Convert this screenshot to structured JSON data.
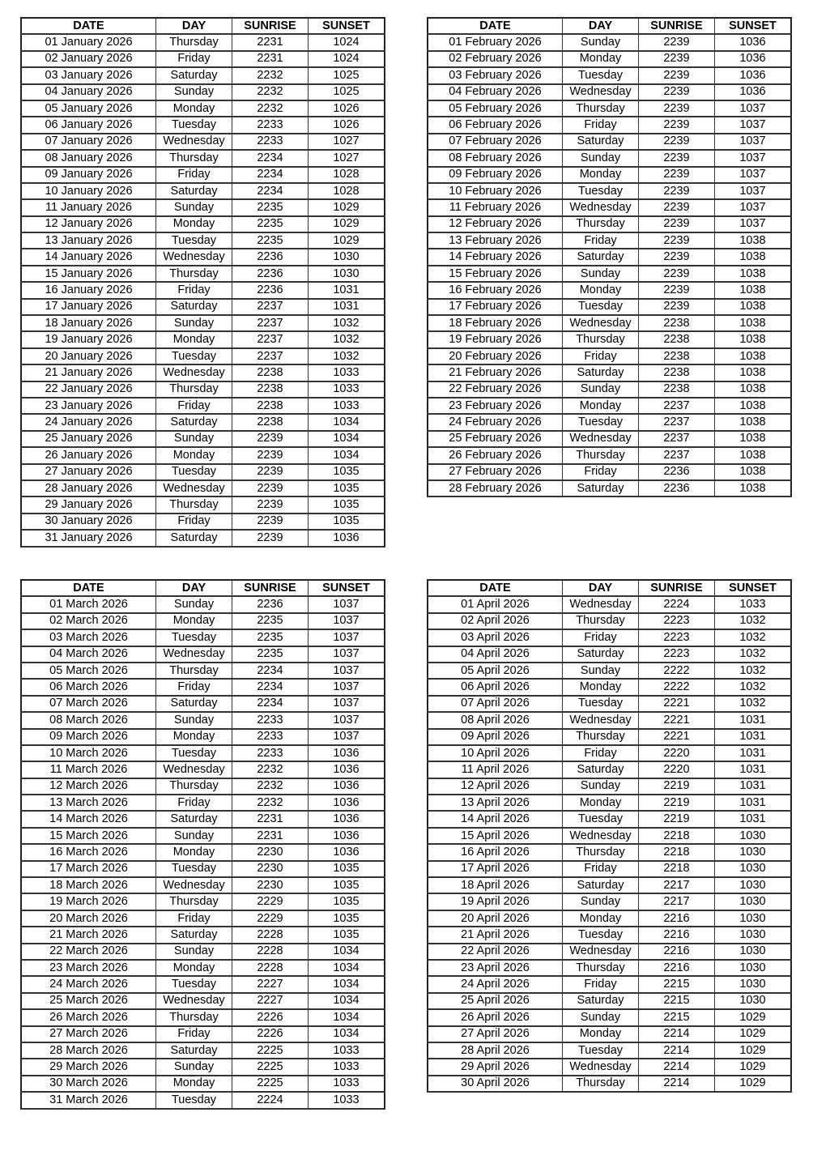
{
  "headers": [
    "DATE",
    "DAY",
    "SUNRISE",
    "SUNSET"
  ],
  "tables": [
    {
      "rows": [
        [
          "01 January 2026",
          "Thursday",
          "2231",
          "1024"
        ],
        [
          "02 January 2026",
          "Friday",
          "2231",
          "1024"
        ],
        [
          "03 January 2026",
          "Saturday",
          "2232",
          "1025"
        ],
        [
          "04 January 2026",
          "Sunday",
          "2232",
          "1025"
        ],
        [
          "05 January 2026",
          "Monday",
          "2232",
          "1026"
        ],
        [
          "06 January 2026",
          "Tuesday",
          "2233",
          "1026"
        ],
        [
          "07 January 2026",
          "Wednesday",
          "2233",
          "1027"
        ],
        [
          "08 January 2026",
          "Thursday",
          "2234",
          "1027"
        ],
        [
          "09 January 2026",
          "Friday",
          "2234",
          "1028"
        ],
        [
          "10 January 2026",
          "Saturday",
          "2234",
          "1028"
        ],
        [
          "11 January 2026",
          "Sunday",
          "2235",
          "1029"
        ],
        [
          "12 January 2026",
          "Monday",
          "2235",
          "1029"
        ],
        [
          "13 January 2026",
          "Tuesday",
          "2235",
          "1029"
        ],
        [
          "14 January 2026",
          "Wednesday",
          "2236",
          "1030"
        ],
        [
          "15 January 2026",
          "Thursday",
          "2236",
          "1030"
        ],
        [
          "16 January 2026",
          "Friday",
          "2236",
          "1031"
        ],
        [
          "17 January 2026",
          "Saturday",
          "2237",
          "1031"
        ],
        [
          "18 January 2026",
          "Sunday",
          "2237",
          "1032"
        ],
        [
          "19 January 2026",
          "Monday",
          "2237",
          "1032"
        ],
        [
          "20 January 2026",
          "Tuesday",
          "2237",
          "1032"
        ],
        [
          "21 January 2026",
          "Wednesday",
          "2238",
          "1033"
        ],
        [
          "22 January 2026",
          "Thursday",
          "2238",
          "1033"
        ],
        [
          "23 January 2026",
          "Friday",
          "2238",
          "1033"
        ],
        [
          "24 January 2026",
          "Saturday",
          "2238",
          "1034"
        ],
        [
          "25 January 2026",
          "Sunday",
          "2239",
          "1034"
        ],
        [
          "26 January 2026",
          "Monday",
          "2239",
          "1034"
        ],
        [
          "27 January 2026",
          "Tuesday",
          "2239",
          "1035"
        ],
        [
          "28 January 2026",
          "Wednesday",
          "2239",
          "1035"
        ],
        [
          "29 January 2026",
          "Thursday",
          "2239",
          "1035"
        ],
        [
          "30 January 2026",
          "Friday",
          "2239",
          "1035"
        ],
        [
          "31 January 2026",
          "Saturday",
          "2239",
          "1036"
        ]
      ]
    },
    {
      "rows": [
        [
          "01 February 2026",
          "Sunday",
          "2239",
          "1036"
        ],
        [
          "02 February 2026",
          "Monday",
          "2239",
          "1036"
        ],
        [
          "03 February 2026",
          "Tuesday",
          "2239",
          "1036"
        ],
        [
          "04 February 2026",
          "Wednesday",
          "2239",
          "1036"
        ],
        [
          "05 February 2026",
          "Thursday",
          "2239",
          "1037"
        ],
        [
          "06 February 2026",
          "Friday",
          "2239",
          "1037"
        ],
        [
          "07 February 2026",
          "Saturday",
          "2239",
          "1037"
        ],
        [
          "08 February 2026",
          "Sunday",
          "2239",
          "1037"
        ],
        [
          "09 February 2026",
          "Monday",
          "2239",
          "1037"
        ],
        [
          "10 February 2026",
          "Tuesday",
          "2239",
          "1037"
        ],
        [
          "11 February 2026",
          "Wednesday",
          "2239",
          "1037"
        ],
        [
          "12 February 2026",
          "Thursday",
          "2239",
          "1037"
        ],
        [
          "13 February 2026",
          "Friday",
          "2239",
          "1038"
        ],
        [
          "14 February 2026",
          "Saturday",
          "2239",
          "1038"
        ],
        [
          "15 February 2026",
          "Sunday",
          "2239",
          "1038"
        ],
        [
          "16 February 2026",
          "Monday",
          "2239",
          "1038"
        ],
        [
          "17 February 2026",
          "Tuesday",
          "2239",
          "1038"
        ],
        [
          "18 February 2026",
          "Wednesday",
          "2238",
          "1038"
        ],
        [
          "19 February 2026",
          "Thursday",
          "2238",
          "1038"
        ],
        [
          "20 February 2026",
          "Friday",
          "2238",
          "1038"
        ],
        [
          "21 February 2026",
          "Saturday",
          "2238",
          "1038"
        ],
        [
          "22 February 2026",
          "Sunday",
          "2238",
          "1038"
        ],
        [
          "23 February 2026",
          "Monday",
          "2237",
          "1038"
        ],
        [
          "24 February 2026",
          "Tuesday",
          "2237",
          "1038"
        ],
        [
          "25 February 2026",
          "Wednesday",
          "2237",
          "1038"
        ],
        [
          "26 February 2026",
          "Thursday",
          "2237",
          "1038"
        ],
        [
          "27 February 2026",
          "Friday",
          "2236",
          "1038"
        ],
        [
          "28 February 2026",
          "Saturday",
          "2236",
          "1038"
        ]
      ]
    },
    {
      "rows": [
        [
          "01 March 2026",
          "Sunday",
          "2236",
          "1037"
        ],
        [
          "02 March 2026",
          "Monday",
          "2235",
          "1037"
        ],
        [
          "03 March 2026",
          "Tuesday",
          "2235",
          "1037"
        ],
        [
          "04 March 2026",
          "Wednesday",
          "2235",
          "1037"
        ],
        [
          "05 March 2026",
          "Thursday",
          "2234",
          "1037"
        ],
        [
          "06 March 2026",
          "Friday",
          "2234",
          "1037"
        ],
        [
          "07 March 2026",
          "Saturday",
          "2234",
          "1037"
        ],
        [
          "08 March 2026",
          "Sunday",
          "2233",
          "1037"
        ],
        [
          "09 March 2026",
          "Monday",
          "2233",
          "1037"
        ],
        [
          "10 March 2026",
          "Tuesday",
          "2233",
          "1036"
        ],
        [
          "11 March 2026",
          "Wednesday",
          "2232",
          "1036"
        ],
        [
          "12 March 2026",
          "Thursday",
          "2232",
          "1036"
        ],
        [
          "13 March 2026",
          "Friday",
          "2232",
          "1036"
        ],
        [
          "14 March 2026",
          "Saturday",
          "2231",
          "1036"
        ],
        [
          "15 March 2026",
          "Sunday",
          "2231",
          "1036"
        ],
        [
          "16 March 2026",
          "Monday",
          "2230",
          "1036"
        ],
        [
          "17 March 2026",
          "Tuesday",
          "2230",
          "1035"
        ],
        [
          "18 March 2026",
          "Wednesday",
          "2230",
          "1035"
        ],
        [
          "19 March 2026",
          "Thursday",
          "2229",
          "1035"
        ],
        [
          "20 March 2026",
          "Friday",
          "2229",
          "1035"
        ],
        [
          "21 March 2026",
          "Saturday",
          "2228",
          "1035"
        ],
        [
          "22 March 2026",
          "Sunday",
          "2228",
          "1034"
        ],
        [
          "23 March 2026",
          "Monday",
          "2228",
          "1034"
        ],
        [
          "24 March 2026",
          "Tuesday",
          "2227",
          "1034"
        ],
        [
          "25 March 2026",
          "Wednesday",
          "2227",
          "1034"
        ],
        [
          "26 March 2026",
          "Thursday",
          "2226",
          "1034"
        ],
        [
          "27 March 2026",
          "Friday",
          "2226",
          "1034"
        ],
        [
          "28 March 2026",
          "Saturday",
          "2225",
          "1033"
        ],
        [
          "29 March 2026",
          "Sunday",
          "2225",
          "1033"
        ],
        [
          "30 March 2026",
          "Monday",
          "2225",
          "1033"
        ],
        [
          "31 March 2026",
          "Tuesday",
          "2224",
          "1033"
        ]
      ]
    },
    {
      "rows": [
        [
          "01 April 2026",
          "Wednesday",
          "2224",
          "1033"
        ],
        [
          "02 April 2026",
          "Thursday",
          "2223",
          "1032"
        ],
        [
          "03 April 2026",
          "Friday",
          "2223",
          "1032"
        ],
        [
          "04 April 2026",
          "Saturday",
          "2223",
          "1032"
        ],
        [
          "05 April 2026",
          "Sunday",
          "2222",
          "1032"
        ],
        [
          "06 April 2026",
          "Monday",
          "2222",
          "1032"
        ],
        [
          "07 April 2026",
          "Tuesday",
          "2221",
          "1032"
        ],
        [
          "08 April 2026",
          "Wednesday",
          "2221",
          "1031"
        ],
        [
          "09 April 2026",
          "Thursday",
          "2221",
          "1031"
        ],
        [
          "10 April 2026",
          "Friday",
          "2220",
          "1031"
        ],
        [
          "11 April 2026",
          "Saturday",
          "2220",
          "1031"
        ],
        [
          "12 April 2026",
          "Sunday",
          "2219",
          "1031"
        ],
        [
          "13 April 2026",
          "Monday",
          "2219",
          "1031"
        ],
        [
          "14 April 2026",
          "Tuesday",
          "2219",
          "1031"
        ],
        [
          "15 April 2026",
          "Wednesday",
          "2218",
          "1030"
        ],
        [
          "16 April 2026",
          "Thursday",
          "2218",
          "1030"
        ],
        [
          "17 April 2026",
          "Friday",
          "2218",
          "1030"
        ],
        [
          "18 April 2026",
          "Saturday",
          "2217",
          "1030"
        ],
        [
          "19 April 2026",
          "Sunday",
          "2217",
          "1030"
        ],
        [
          "20 April 2026",
          "Monday",
          "2216",
          "1030"
        ],
        [
          "21 April 2026",
          "Tuesday",
          "2216",
          "1030"
        ],
        [
          "22 April 2026",
          "Wednesday",
          "2216",
          "1030"
        ],
        [
          "23 April 2026",
          "Thursday",
          "2216",
          "1030"
        ],
        [
          "24 April 2026",
          "Friday",
          "2215",
          "1030"
        ],
        [
          "25 April 2026",
          "Saturday",
          "2215",
          "1030"
        ],
        [
          "26 April 2026",
          "Sunday",
          "2215",
          "1029"
        ],
        [
          "27 April 2026",
          "Monday",
          "2214",
          "1029"
        ],
        [
          "28 April 2026",
          "Tuesday",
          "2214",
          "1029"
        ],
        [
          "29 April 2026",
          "Wednesday",
          "2214",
          "1029"
        ],
        [
          "30 April 2026",
          "Thursday",
          "2214",
          "1029"
        ]
      ]
    }
  ]
}
